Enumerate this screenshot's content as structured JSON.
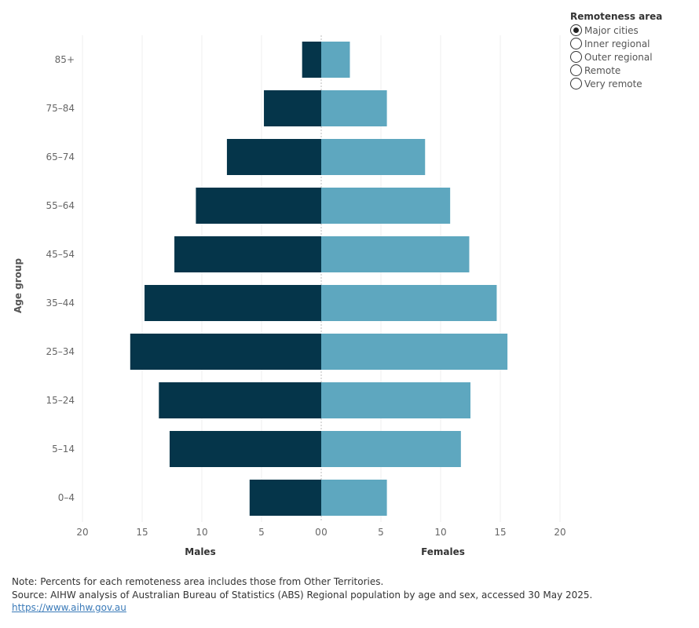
{
  "chart_data": {
    "type": "bar",
    "orientation": "horizontal",
    "subtype": "population-pyramid",
    "categories": [
      "85+",
      "75–84",
      "65–74",
      "55–64",
      "45–54",
      "35–44",
      "25–34",
      "15–24",
      "5–14",
      "0–4"
    ],
    "series": [
      {
        "name": "Males",
        "color": "#05354a",
        "values": [
          1.6,
          4.8,
          7.9,
          10.5,
          12.3,
          14.8,
          16.0,
          13.6,
          12.7,
          6.0
        ]
      },
      {
        "name": "Females",
        "color": "#5ea7bf",
        "values": [
          2.4,
          5.5,
          8.7,
          10.8,
          12.4,
          14.7,
          15.6,
          12.5,
          11.7,
          5.5
        ]
      }
    ],
    "ylabel": "Age group",
    "x_ticks": [
      "20",
      "15",
      "10",
      "5",
      "0",
      "0",
      "5",
      "10",
      "15",
      "20"
    ],
    "xlim": [
      0,
      20
    ],
    "grid": true,
    "legend_placement": "top-right"
  },
  "legend": {
    "title": "Remoteness area",
    "items": [
      {
        "label": "Major cities",
        "selected": true
      },
      {
        "label": "Inner regional",
        "selected": false
      },
      {
        "label": "Outer regional",
        "selected": false
      },
      {
        "label": "Remote",
        "selected": false
      },
      {
        "label": "Very remote",
        "selected": false
      }
    ]
  },
  "footer": {
    "note": "Note: Percents for each remoteness area includes those from Other Territories.",
    "source": "Source: AIHW analysis of Australian Bureau of Statistics (ABS) Regional population by age and sex, accessed 30 May 2025.",
    "link": "https://www.aihw.gov.au"
  }
}
